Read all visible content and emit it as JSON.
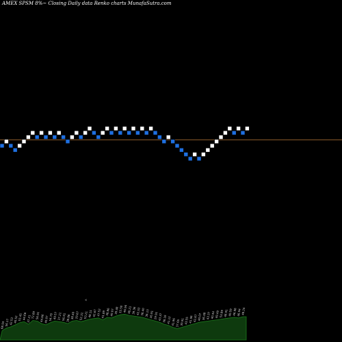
{
  "chart_data": {
    "type": "renko",
    "title": "AMEX  SPSM 8%~ Closing Daily data  Renko  charts MunafaSutra.com",
    "reference_line": {
      "color": "#8b5a2b"
    },
    "colors": {
      "up": "#ffffff",
      "down": "#1e6fe0",
      "volume": "#0e3a0e",
      "volume_edge": "#1c7a1c",
      "background": "#000000"
    },
    "bricks": [
      {
        "x": 0,
        "level": 3,
        "dir": "down"
      },
      {
        "x": 1,
        "level": 4,
        "dir": "up"
      },
      {
        "x": 2,
        "level": 3,
        "dir": "down"
      },
      {
        "x": 3,
        "level": 2,
        "dir": "down"
      },
      {
        "x": 4,
        "level": 3,
        "dir": "up"
      },
      {
        "x": 5,
        "level": 4,
        "dir": "up"
      },
      {
        "x": 6,
        "level": 5,
        "dir": "up"
      },
      {
        "x": 7,
        "level": 6,
        "dir": "up"
      },
      {
        "x": 8,
        "level": 5,
        "dir": "down"
      },
      {
        "x": 9,
        "level": 6,
        "dir": "up"
      },
      {
        "x": 10,
        "level": 5,
        "dir": "down"
      },
      {
        "x": 11,
        "level": 6,
        "dir": "up"
      },
      {
        "x": 12,
        "level": 5,
        "dir": "down"
      },
      {
        "x": 13,
        "level": 6,
        "dir": "up"
      },
      {
        "x": 14,
        "level": 5,
        "dir": "down"
      },
      {
        "x": 15,
        "level": 4,
        "dir": "down"
      },
      {
        "x": 16,
        "level": 5,
        "dir": "up"
      },
      {
        "x": 17,
        "level": 6,
        "dir": "up"
      },
      {
        "x": 18,
        "level": 5,
        "dir": "down"
      },
      {
        "x": 19,
        "level": 6,
        "dir": "up"
      },
      {
        "x": 20,
        "level": 7,
        "dir": "up"
      },
      {
        "x": 21,
        "level": 6,
        "dir": "down"
      },
      {
        "x": 22,
        "level": 5,
        "dir": "down"
      },
      {
        "x": 23,
        "level": 6,
        "dir": "up"
      },
      {
        "x": 24,
        "level": 7,
        "dir": "up"
      },
      {
        "x": 25,
        "level": 6,
        "dir": "down"
      },
      {
        "x": 26,
        "level": 7,
        "dir": "up"
      },
      {
        "x": 27,
        "level": 6,
        "dir": "down"
      },
      {
        "x": 28,
        "level": 7,
        "dir": "up"
      },
      {
        "x": 29,
        "level": 6,
        "dir": "down"
      },
      {
        "x": 30,
        "level": 7,
        "dir": "up"
      },
      {
        "x": 31,
        "level": 6,
        "dir": "down"
      },
      {
        "x": 32,
        "level": 7,
        "dir": "up"
      },
      {
        "x": 33,
        "level": 6,
        "dir": "down"
      },
      {
        "x": 34,
        "level": 7,
        "dir": "up"
      },
      {
        "x": 35,
        "level": 6,
        "dir": "down"
      },
      {
        "x": 36,
        "level": 5,
        "dir": "down"
      },
      {
        "x": 37,
        "level": 4,
        "dir": "down"
      },
      {
        "x": 38,
        "level": 5,
        "dir": "up"
      },
      {
        "x": 39,
        "level": 4,
        "dir": "down"
      },
      {
        "x": 40,
        "level": 3,
        "dir": "down"
      },
      {
        "x": 41,
        "level": 2,
        "dir": "down"
      },
      {
        "x": 42,
        "level": 1,
        "dir": "down"
      },
      {
        "x": 43,
        "level": 0,
        "dir": "down"
      },
      {
        "x": 44,
        "level": 1,
        "dir": "up"
      },
      {
        "x": 45,
        "level": 0,
        "dir": "down"
      },
      {
        "x": 46,
        "level": 1,
        "dir": "up"
      },
      {
        "x": 47,
        "level": 2,
        "dir": "up"
      },
      {
        "x": 48,
        "level": 3,
        "dir": "up"
      },
      {
        "x": 49,
        "level": 4,
        "dir": "up"
      },
      {
        "x": 50,
        "level": 5,
        "dir": "up"
      },
      {
        "x": 51,
        "level": 6,
        "dir": "up"
      },
      {
        "x": 52,
        "level": 7,
        "dir": "up"
      },
      {
        "x": 53,
        "level": 6,
        "dir": "down"
      },
      {
        "x": 54,
        "level": 7,
        "dir": "up"
      },
      {
        "x": 55,
        "level": 6,
        "dir": "down"
      },
      {
        "x": 56,
        "level": 7,
        "dir": "up"
      }
    ],
    "volume": {
      "values": [
        0.3,
        0.38,
        0.42,
        0.48,
        0.55,
        0.58,
        0.5,
        0.62,
        0.6,
        0.52,
        0.48,
        0.55,
        0.6,
        0.58,
        0.56,
        0.52,
        0.6,
        0.62,
        0.58,
        0.62,
        0.66,
        0.68,
        0.7,
        0.64,
        0.72,
        0.7,
        0.76,
        0.8,
        0.82,
        0.78,
        0.76,
        0.74,
        0.72,
        0.68,
        0.64,
        0.6,
        0.56,
        0.5,
        0.46,
        0.4,
        0.36,
        0.4,
        0.44,
        0.48,
        0.52,
        0.56,
        0.58,
        0.6,
        0.62,
        0.64,
        0.66,
        0.68,
        0.7,
        0.72,
        0.7,
        0.74
      ],
      "labels": [
        "68.93",
        "56.17",
        "42.53",
        "40.52",
        "53.45",
        "44.66",
        "37.21",
        "72.89",
        "56.91",
        "44.66",
        "40.07",
        "54.78",
        "49.57",
        "37.21",
        "56.91",
        "38.86",
        "38.40",
        "29.67",
        "52.31",
        "53.21",
        "48.11",
        "42.67",
        "47.52",
        "41.89",
        "38.86",
        "40.07",
        "39.48",
        "33.50",
        "46.94",
        "38.21",
        "39.36",
        "42.53",
        "38.40",
        "36.13",
        "26.91",
        "29.91",
        "43.37",
        "38.16",
        "41.12",
        "41.96",
        "37.65",
        "39.91",
        "43.55",
        "41.96",
        "42.67",
        "40.07",
        "36.08",
        "43.37",
        "40.44",
        "49.49",
        "53.89",
        "48.91",
        "40.59",
        "46.98",
        "46.94",
        "48.24"
      ],
      "marker": "<"
    }
  }
}
